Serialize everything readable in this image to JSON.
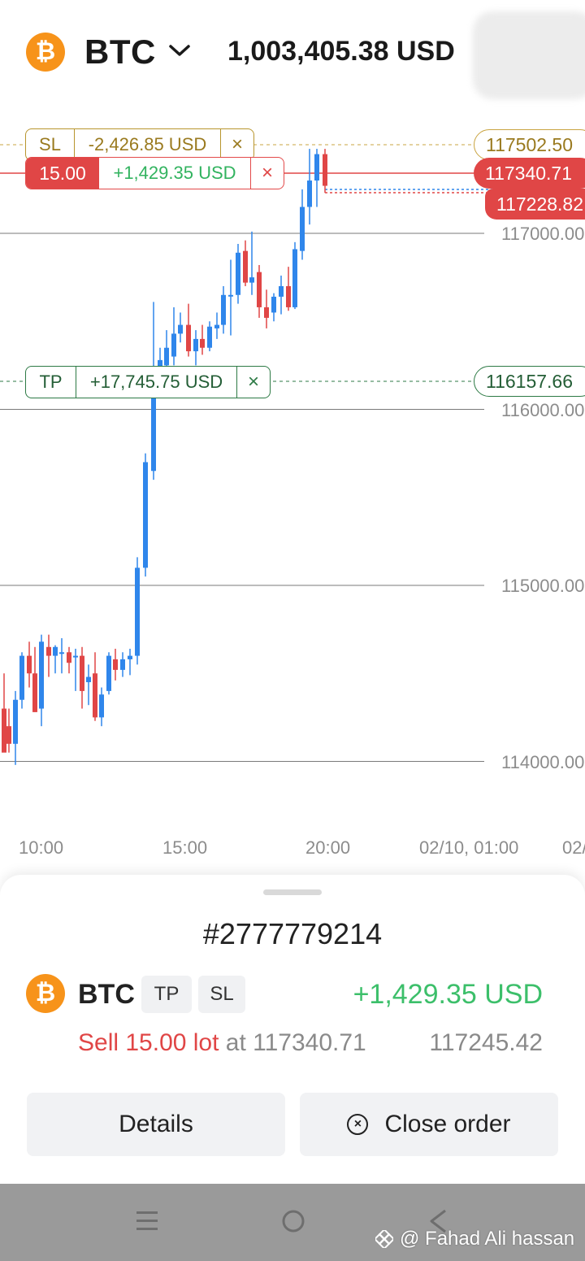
{
  "header": {
    "coin_icon": "bitcoin-icon",
    "symbol": "BTC",
    "balance": "1,003,405.38 USD"
  },
  "chart": {
    "sl": {
      "tag": "SL",
      "amount": "-2,426.85 USD",
      "close": "×",
      "price": "117502.50"
    },
    "position": {
      "lot": "15.00",
      "amount": "+1,429.35 USD",
      "close": "×",
      "price": "117340.71"
    },
    "bid_price": "117228.82",
    "tp": {
      "tag": "TP",
      "amount": "+17,745.75 USD",
      "close": "×",
      "price": "116157.66"
    },
    "y_ticks": [
      "117000.00",
      "116000.00",
      "115000.00",
      "114000.00"
    ],
    "x_ticks": [
      "10:00",
      "15:00",
      "20:00",
      "02/10, 01:00",
      "02/"
    ]
  },
  "order": {
    "id": "#2777779214",
    "symbol": "BTC",
    "tp_chip": "TP",
    "sl_chip": "SL",
    "profit": "+1,429.35 USD",
    "side_text": "Sell 15.00 lot",
    "at_text": " at 117340.71",
    "current_price": "117245.42",
    "details_label": "Details",
    "close_label": "Close order"
  },
  "watermark": "@ Fahad Ali hassan",
  "colors": {
    "up": "#2f86eb",
    "down": "#e04646",
    "profit": "#3cbf6a",
    "sl": "#b8952e",
    "tp": "#2d7a45",
    "brand": "#f7931a"
  }
}
